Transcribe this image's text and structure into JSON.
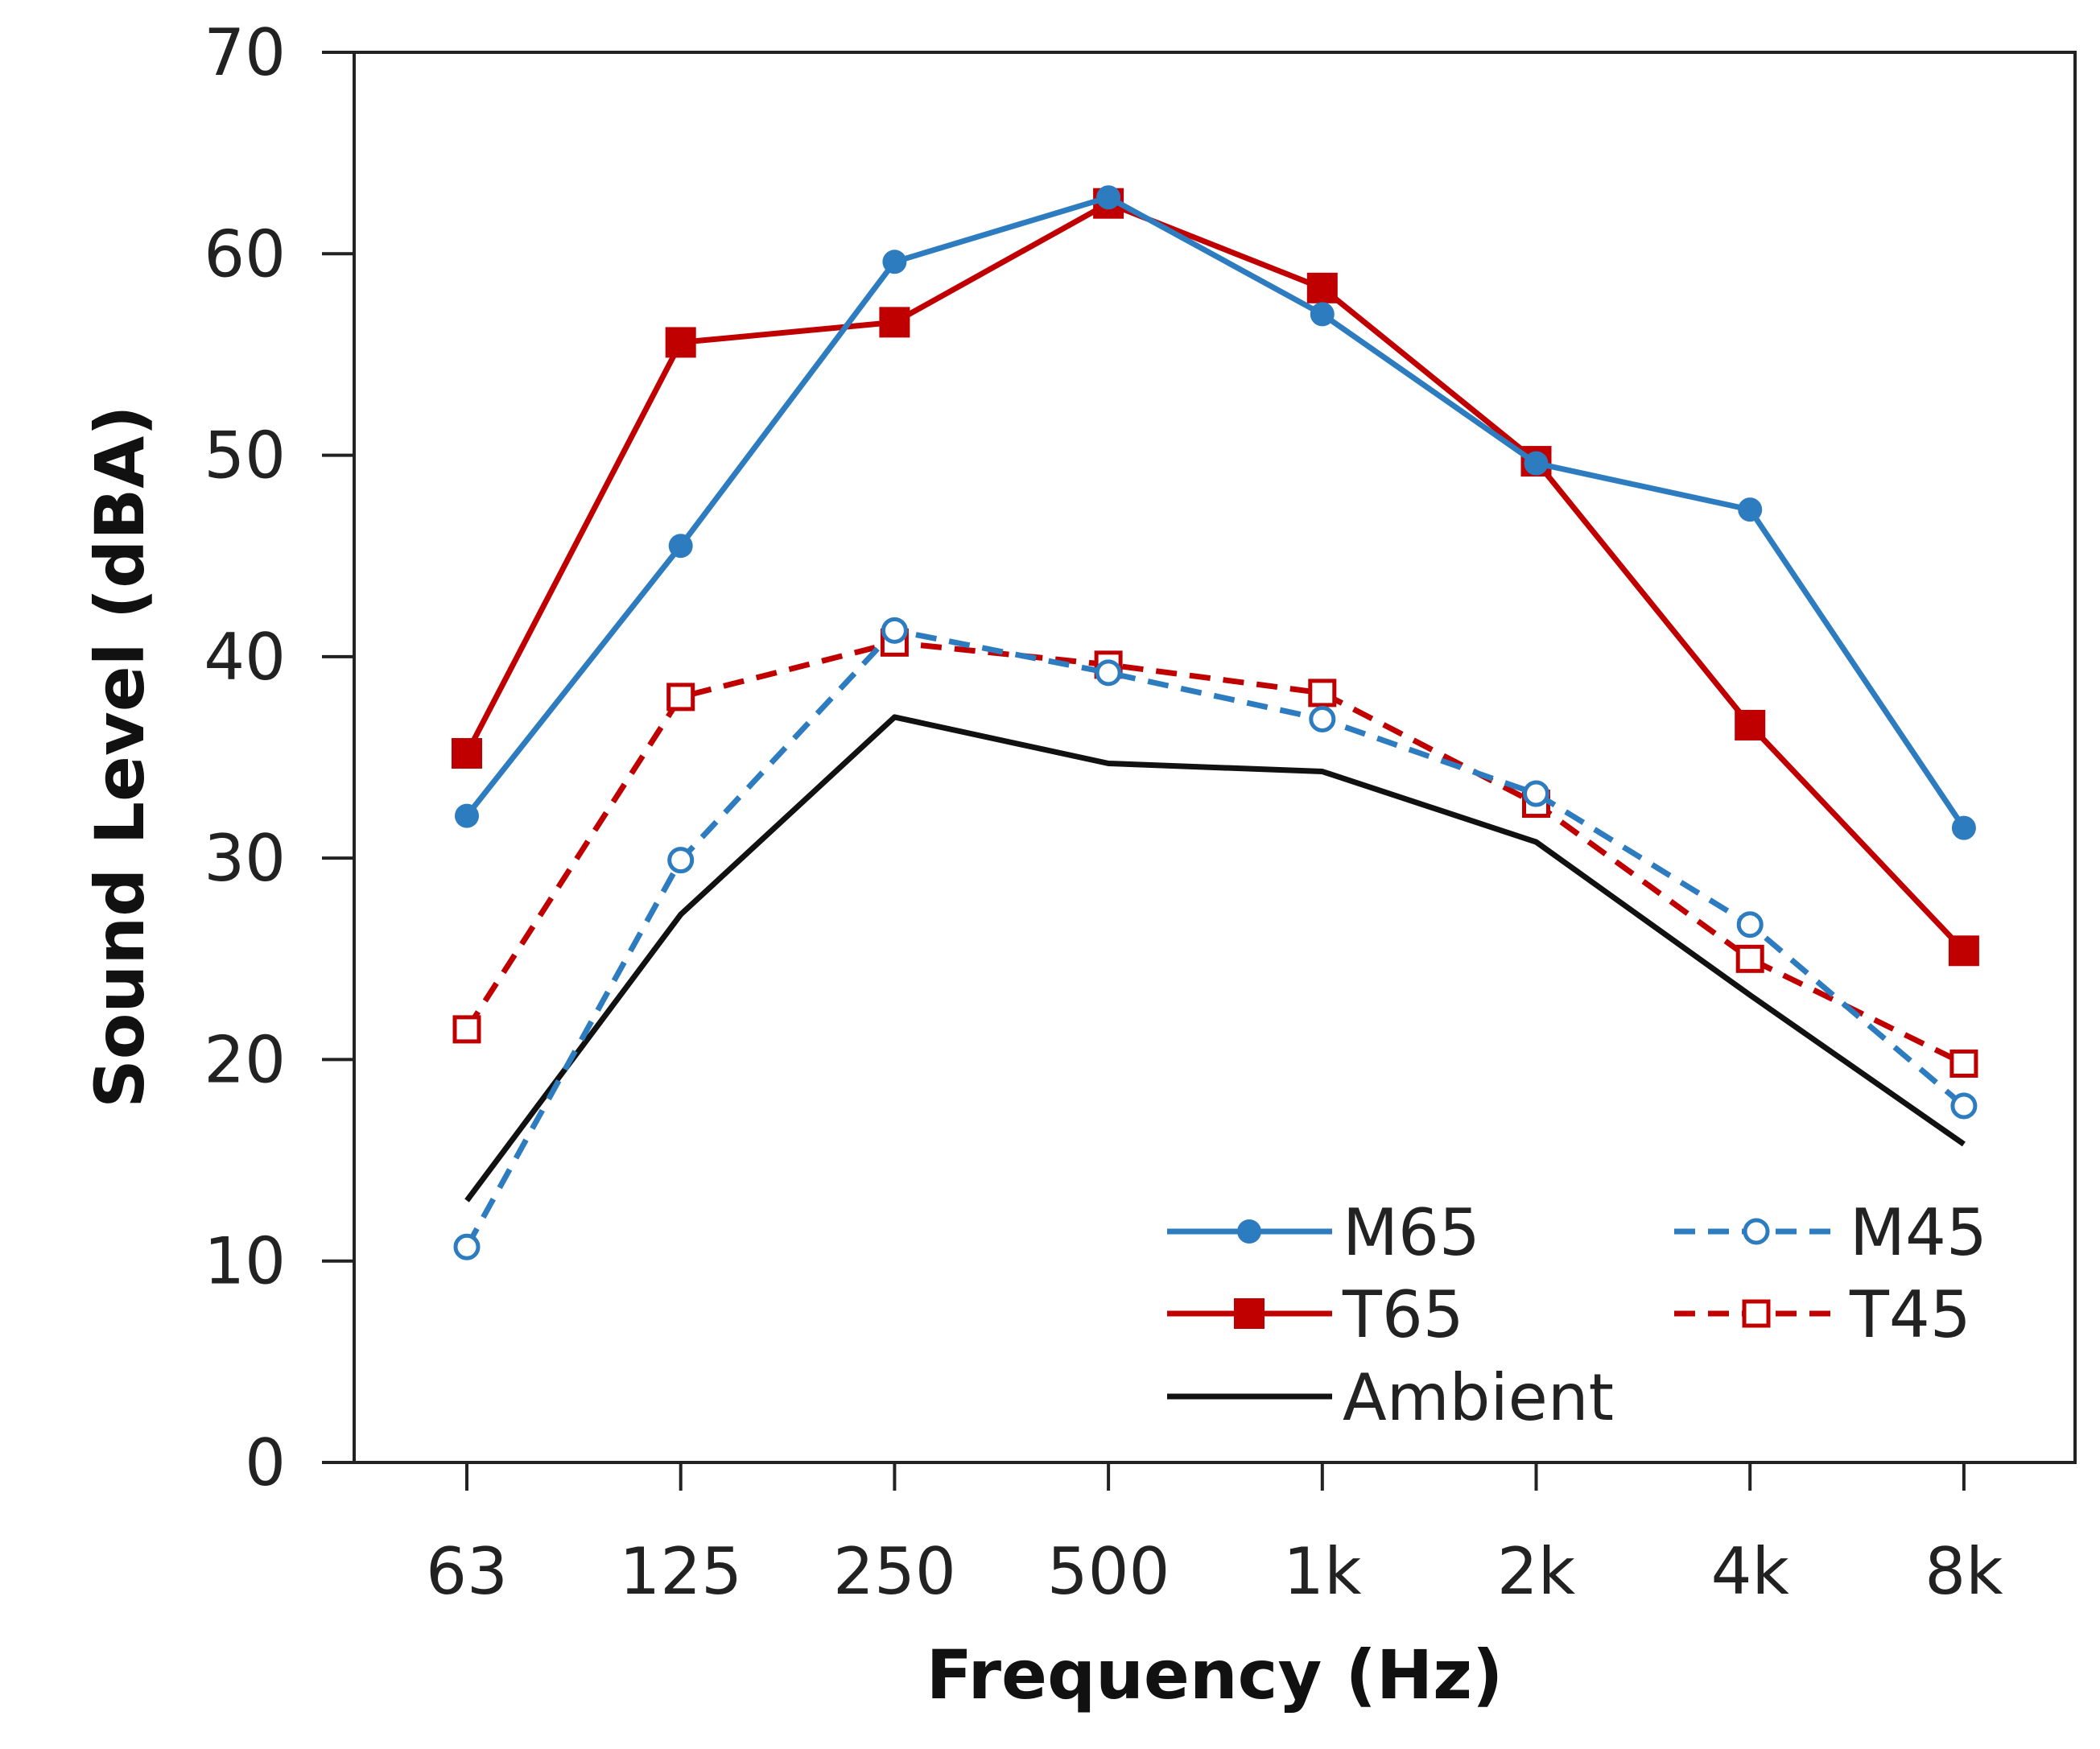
{
  "chart_data": {
    "type": "line",
    "title": "",
    "xlabel": "Frequency (Hz)",
    "ylabel": "Sound Level (dBA)",
    "categories": [
      "63",
      "125",
      "250",
      "500",
      "1k",
      "2k",
      "4k",
      "8k"
    ],
    "ylim": [
      0,
      70
    ],
    "yticks": [
      "0",
      "10",
      "20",
      "30",
      "40",
      "50",
      "60",
      "70"
    ],
    "grid": false,
    "legend_position": "bottom-right",
    "series": [
      {
        "name": "M65",
        "color": "#2E7CC0",
        "style": "solid",
        "marker": "circle-filled",
        "values": [
          32.1,
          45.5,
          59.6,
          62.8,
          57.0,
          49.6,
          47.3,
          31.5
        ]
      },
      {
        "name": "M45",
        "color": "#2E7CC0",
        "style": "dashed",
        "marker": "circle-open",
        "values": [
          10.7,
          29.9,
          41.3,
          39.2,
          36.9,
          33.2,
          26.7,
          17.7
        ]
      },
      {
        "name": "T65",
        "color": "#C00000",
        "style": "solid",
        "marker": "square-filled",
        "values": [
          35.2,
          55.6,
          56.6,
          62.5,
          58.3,
          49.7,
          36.6,
          25.4
        ]
      },
      {
        "name": "T45",
        "color": "#C00000",
        "style": "dashed",
        "marker": "square-open",
        "values": [
          21.5,
          38.0,
          40.7,
          39.6,
          38.2,
          32.7,
          25.0,
          19.8
        ]
      },
      {
        "name": "Ambient",
        "color": "#111111",
        "style": "solid",
        "marker": "none",
        "values": [
          13.0,
          27.2,
          37.0,
          34.7,
          34.3,
          30.8,
          23.2,
          15.8
        ]
      }
    ]
  }
}
